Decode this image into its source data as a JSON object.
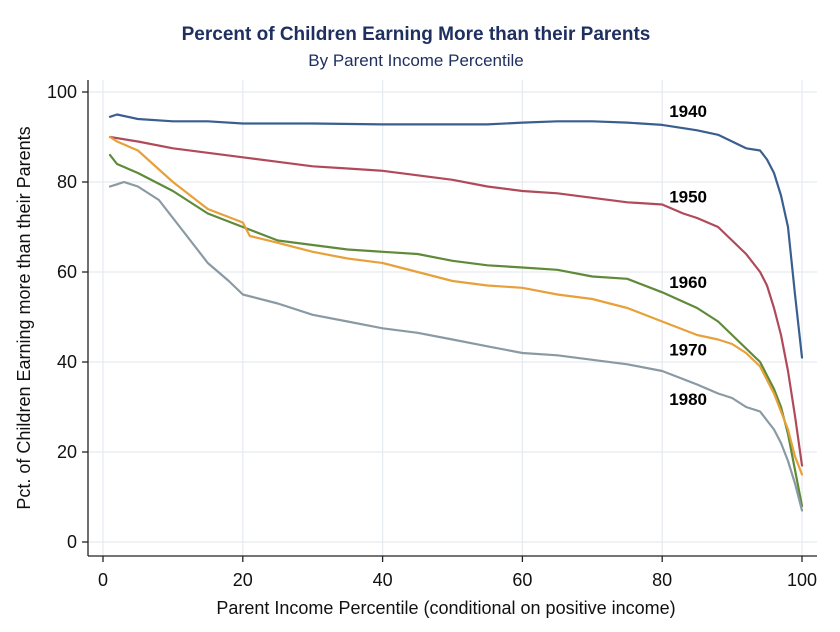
{
  "chart_data": {
    "type": "line",
    "title": "Percent of Children Earning More than their Parents",
    "subtitle": "By Parent Income Percentile",
    "xlabel": "Parent Income Percentile (conditional on positive income)",
    "ylabel": "Pct. of Children Earning more than their Parents",
    "xlim": [
      0,
      100
    ],
    "ylim": [
      0,
      100
    ],
    "xticks": [
      0,
      20,
      40,
      60,
      80,
      100
    ],
    "yticks": [
      0,
      20,
      40,
      60,
      80,
      100
    ],
    "grid": true,
    "series": [
      {
        "name": "1940",
        "color": "#3a5f8f",
        "x": [
          1,
          2,
          5,
          10,
          15,
          20,
          30,
          40,
          50,
          55,
          60,
          65,
          70,
          75,
          80,
          85,
          88,
          90,
          92,
          94,
          95,
          96,
          97,
          98,
          99,
          100
        ],
        "y": [
          94.5,
          95,
          94,
          93.5,
          93.5,
          93,
          93,
          92.8,
          92.8,
          92.8,
          93.2,
          93.5,
          93.5,
          93.2,
          92.7,
          91.5,
          90.5,
          89,
          87.5,
          87,
          85,
          82,
          77,
          70,
          55,
          41
        ]
      },
      {
        "name": "1950",
        "color": "#b04a5a",
        "x": [
          1,
          5,
          10,
          15,
          20,
          25,
          30,
          35,
          40,
          45,
          50,
          55,
          60,
          65,
          70,
          75,
          80,
          83,
          85,
          88,
          90,
          92,
          94,
          95,
          96,
          97,
          98,
          99,
          100
        ],
        "y": [
          90,
          89,
          87.5,
          86.5,
          85.5,
          84.5,
          83.5,
          83,
          82.5,
          81.5,
          80.5,
          79,
          78,
          77.5,
          76.5,
          75.5,
          75,
          73,
          72,
          70,
          67,
          64,
          60,
          57,
          52,
          46,
          38,
          28,
          17
        ]
      },
      {
        "name": "1960",
        "color": "#5f8a3a",
        "x": [
          1,
          2,
          5,
          10,
          15,
          20,
          25,
          30,
          35,
          40,
          45,
          50,
          55,
          60,
          65,
          70,
          75,
          80,
          85,
          88,
          90,
          92,
          94,
          95,
          96,
          97,
          98,
          99,
          100
        ],
        "y": [
          86,
          84,
          82,
          78,
          73,
          70,
          67,
          66,
          65,
          64.5,
          64,
          62.5,
          61.5,
          61,
          60.5,
          59,
          58.5,
          55.5,
          52,
          49,
          46,
          43,
          40,
          37,
          34,
          30,
          24,
          16,
          8
        ]
      },
      {
        "name": "1970",
        "color": "#e8a03a",
        "x": [
          1,
          2,
          5,
          10,
          15,
          20,
          21,
          25,
          30,
          35,
          40,
          45,
          50,
          55,
          60,
          65,
          70,
          75,
          80,
          85,
          88,
          90,
          92,
          94,
          95,
          96,
          97,
          98,
          99,
          100
        ],
        "y": [
          90,
          89,
          87,
          80,
          74,
          71,
          68,
          66.5,
          64.5,
          63,
          62,
          60,
          58,
          57,
          56.5,
          55,
          54,
          52,
          49,
          46,
          45,
          44,
          42,
          39,
          36,
          33,
          29,
          25,
          19,
          15
        ]
      },
      {
        "name": "1980",
        "color": "#8a9aa3",
        "x": [
          1,
          2,
          3,
          5,
          8,
          10,
          12,
          15,
          18,
          20,
          25,
          30,
          35,
          40,
          45,
          50,
          55,
          60,
          65,
          70,
          75,
          80,
          85,
          88,
          90,
          92,
          94,
          95,
          96,
          97,
          98,
          99,
          100
        ],
        "y": [
          79,
          79.5,
          80,
          79,
          76,
          72,
          68,
          62,
          58,
          55,
          53,
          50.5,
          49,
          47.5,
          46.5,
          45,
          43.5,
          42,
          41.5,
          40.5,
          39.5,
          38,
          35,
          33,
          32,
          30,
          29,
          27,
          25,
          22,
          18,
          13,
          7
        ]
      }
    ],
    "annotations": [
      {
        "text": "1940",
        "x": 81,
        "y": 94.5
      },
      {
        "text": "1950",
        "x": 81,
        "y": 75.5
      },
      {
        "text": "1960",
        "x": 81,
        "y": 56.5
      },
      {
        "text": "1970",
        "x": 81,
        "y": 41.5
      },
      {
        "text": "1980",
        "x": 81,
        "y": 30.5
      }
    ]
  }
}
